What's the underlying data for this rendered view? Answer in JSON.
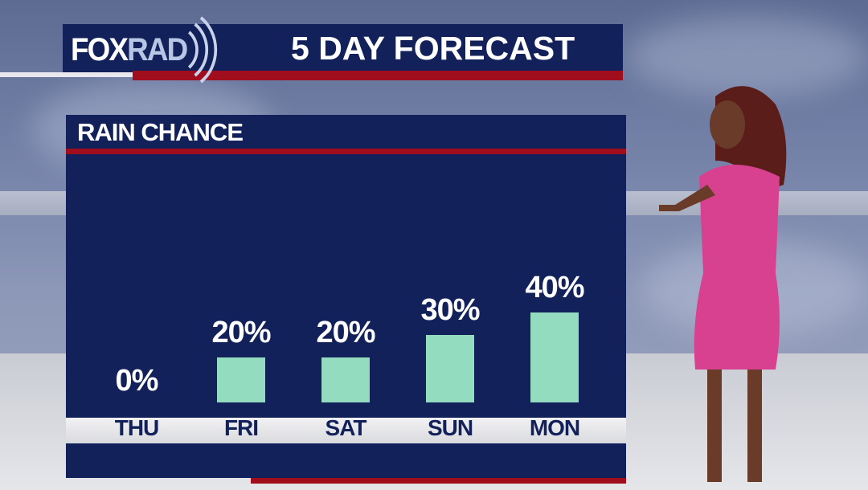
{
  "header": {
    "logo_text": "FOXRAD",
    "logo_fox": "FOX",
    "logo_rad": "RAD",
    "title": "5 DAY FORECAST"
  },
  "panel": {
    "title": "RAIN CHANCE"
  },
  "colors": {
    "navy": "#13215a",
    "red": "#a00d1d",
    "bar": "#94dcbf",
    "strip": "#e6e6ea"
  },
  "chart_data": {
    "type": "bar",
    "title": "RAIN CHANCE",
    "categories": [
      "THU",
      "FRI",
      "SAT",
      "SUN",
      "MON"
    ],
    "values": [
      0,
      20,
      20,
      30,
      40
    ],
    "labels": [
      "0%",
      "20%",
      "20%",
      "30%",
      "40%"
    ],
    "unit": "%",
    "grid": false
  }
}
